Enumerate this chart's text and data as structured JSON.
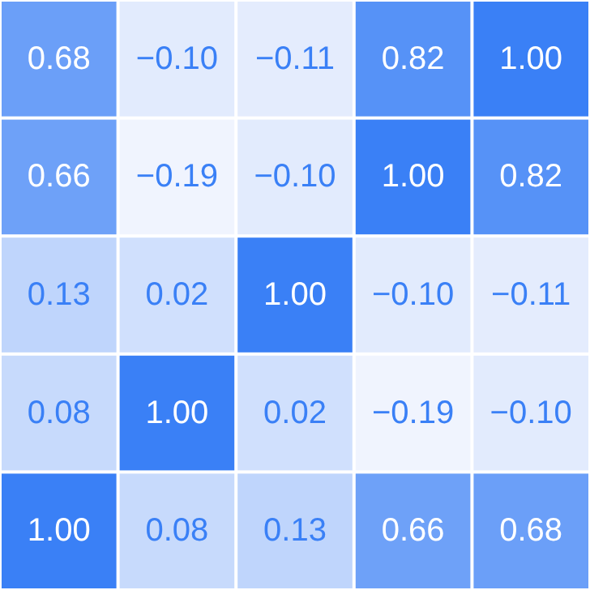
{
  "chart_data": {
    "type": "heatmap",
    "categories": [
      null,
      null,
      null,
      null,
      null
    ],
    "y_categories": [
      null,
      null,
      null,
      null,
      null
    ],
    "cells": [
      [
        0.68,
        -0.1,
        -0.11,
        0.82,
        1.0
      ],
      [
        0.66,
        -0.19,
        -0.1,
        1.0,
        0.82
      ],
      [
        0.13,
        0.02,
        1.0,
        -0.1,
        -0.11
      ],
      [
        0.08,
        1.0,
        0.02,
        -0.19,
        -0.1
      ],
      [
        1.0,
        0.08,
        0.13,
        0.66,
        0.68
      ]
    ],
    "cell_labels": [
      [
        "0.68",
        "−0.10",
        "−0.11",
        "0.82",
        "1.00"
      ],
      [
        "0.66",
        "−0.19",
        "−0.10",
        "1.00",
        "0.82"
      ],
      [
        "0.13",
        "0.02",
        "1.00",
        "−0.10",
        "−0.11"
      ],
      [
        "0.08",
        "1.00",
        "0.02",
        "−0.19",
        "−0.10"
      ],
      [
        "1.00",
        "0.08",
        "0.13",
        "0.66",
        "0.68"
      ]
    ]
  }
}
